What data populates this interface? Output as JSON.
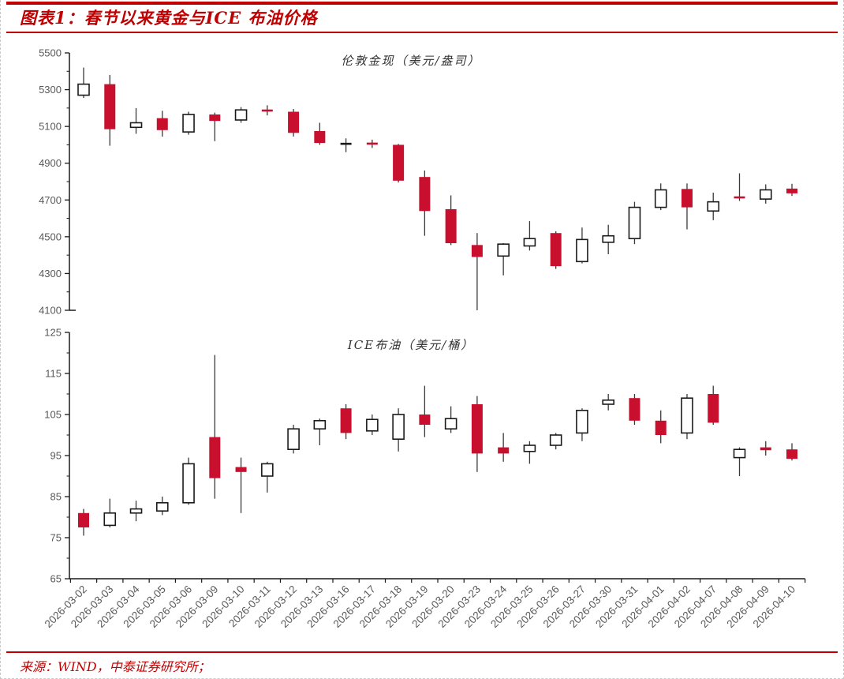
{
  "page": {
    "title": "图表1：春节以来黄金与ICE 布油价格",
    "source": "来源：WIND，中泰证券研究所；"
  },
  "colors": {
    "accent": "#C00000",
    "candle_down": "#C8102E",
    "candle_up_stroke": "#1a1a1a",
    "wick": "#3a3a3a",
    "axis": "#1a1a1a",
    "tick_label": "#595959"
  },
  "categories": [
    "2026-03-02",
    "2026-03-03",
    "2026-03-04",
    "2026-03-05",
    "2026-03-06",
    "2026-03-09",
    "2026-03-10",
    "2026-03-11",
    "2026-03-12",
    "2026-03-13",
    "2026-03-16",
    "2026-03-17",
    "2026-03-18",
    "2026-03-19",
    "2026-03-20",
    "2026-03-23",
    "2026-03-24",
    "2026-03-25",
    "2026-03-26",
    "2026-03-27",
    "2026-03-30",
    "2026-03-31",
    "2026-04-01",
    "2026-04-02",
    "2026-04-07",
    "2026-04-08",
    "2026-04-09",
    "2026-04-10"
  ],
  "chart_data": [
    {
      "type": "candlestick",
      "name": "gold",
      "title": "伦敦金现（美元/盎司）",
      "ylabel": "美元/盎司",
      "ylim": [
        4100,
        5500
      ],
      "ytick_step": 200,
      "minor_tick_step": 100,
      "grid": false,
      "show_x_axis": false,
      "show_x_labels": false,
      "up_style": "hollow-white-black-border",
      "down_style": "solid-red",
      "ohlc_order": [
        "open",
        "high",
        "low",
        "close"
      ],
      "ohlc": [
        [
          5270,
          5420,
          5255,
          5330
        ],
        [
          5330,
          5380,
          4995,
          5085
        ],
        [
          5095,
          5200,
          5060,
          5120
        ],
        [
          5145,
          5185,
          5045,
          5080
        ],
        [
          5070,
          5180,
          5055,
          5165
        ],
        [
          5165,
          5175,
          5020,
          5130
        ],
        [
          5135,
          5205,
          5120,
          5190
        ],
        [
          5190,
          5215,
          5160,
          5183
        ],
        [
          5180,
          5195,
          5045,
          5065
        ],
        [
          5075,
          5120,
          5000,
          5010
        ],
        [
          5003,
          5035,
          4960,
          5008
        ],
        [
          5010,
          5028,
          4983,
          5003
        ],
        [
          5000,
          5005,
          4795,
          4805
        ],
        [
          4825,
          4860,
          4505,
          4640
        ],
        [
          4650,
          4725,
          4455,
          4465
        ],
        [
          4455,
          4520,
          4100,
          4390
        ],
        [
          4395,
          4465,
          4290,
          4460
        ],
        [
          4450,
          4585,
          4425,
          4490
        ],
        [
          4520,
          4530,
          4325,
          4340
        ],
        [
          4365,
          4550,
          4355,
          4485
        ],
        [
          4470,
          4565,
          4405,
          4505
        ],
        [
          4490,
          4690,
          4460,
          4660
        ],
        [
          4660,
          4790,
          4645,
          4755
        ],
        [
          4760,
          4790,
          4540,
          4660
        ],
        [
          4640,
          4740,
          4590,
          4690
        ],
        [
          4718,
          4845,
          4695,
          4710
        ],
        [
          4705,
          4785,
          4680,
          4755
        ],
        [
          4762,
          4788,
          4722,
          4736
        ]
      ]
    },
    {
      "type": "candlestick",
      "name": "oil",
      "title": "ICE布油（美元/桶）",
      "ylabel": "美元/桶",
      "ylim": [
        65,
        125
      ],
      "ytick_step": 10,
      "minor_tick_step": 5,
      "grid": false,
      "show_x_axis": true,
      "show_x_labels": true,
      "up_style": "hollow-white-black-border",
      "down_style": "solid-red",
      "ohlc_order": [
        "open",
        "high",
        "low",
        "close"
      ],
      "ohlc": [
        [
          81,
          82,
          75.5,
          77.5
        ],
        [
          78,
          84.5,
          77.5,
          81
        ],
        [
          81,
          84,
          79,
          82
        ],
        [
          81.5,
          85,
          80.5,
          83.5
        ],
        [
          83.5,
          94.5,
          83,
          93
        ],
        [
          99.5,
          119.5,
          84.5,
          89.5
        ],
        [
          92.2,
          94.5,
          81,
          91
        ],
        [
          90,
          93.5,
          86,
          93
        ],
        [
          96.5,
          102.5,
          95.5,
          101.5
        ],
        [
          101.5,
          104,
          97.5,
          103.5
        ],
        [
          106.5,
          107.5,
          99,
          100.5
        ],
        [
          101,
          105,
          100,
          103.8
        ],
        [
          99,
          106.5,
          96,
          105
        ],
        [
          105,
          112,
          99.5,
          102.5
        ],
        [
          101.5,
          107,
          100.5,
          104
        ],
        [
          107.5,
          109.5,
          91,
          95.5
        ],
        [
          97,
          100.5,
          93.5,
          95.5
        ],
        [
          96,
          98.5,
          93,
          97.5
        ],
        [
          97.5,
          100.5,
          96.5,
          100
        ],
        [
          100.5,
          106.5,
          98.5,
          106
        ],
        [
          107.5,
          110,
          106,
          108.5
        ],
        [
          109,
          110,
          102.5,
          103.5
        ],
        [
          103.5,
          106,
          98,
          100
        ],
        [
          100.5,
          110,
          99,
          109
        ],
        [
          110,
          112,
          102.5,
          103
        ],
        [
          94.5,
          97,
          90,
          96.5
        ],
        [
          97,
          98.5,
          95,
          96.3
        ],
        [
          96.5,
          98,
          93.8,
          94.2
        ]
      ]
    }
  ]
}
